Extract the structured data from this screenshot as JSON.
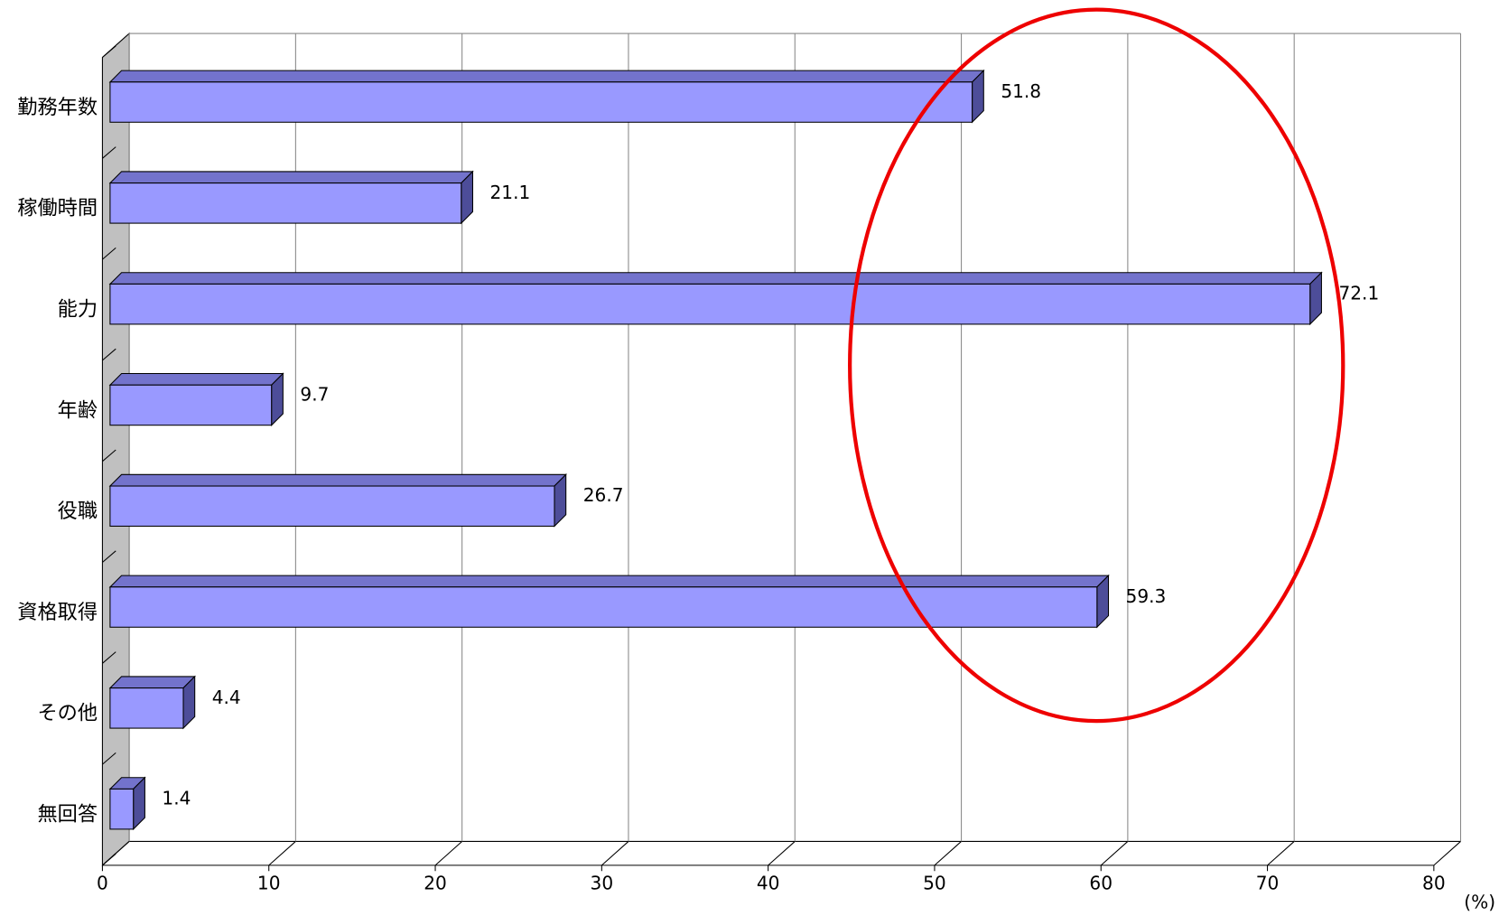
{
  "chart_data": {
    "type": "bar",
    "orientation": "horizontal",
    "categories": [
      "勤務年数",
      "稼働時間",
      "能力",
      "年齢",
      "役職",
      "資格取得",
      "その他",
      "無回答"
    ],
    "values": [
      51.8,
      21.1,
      72.1,
      9.7,
      26.7,
      59.3,
      4.4,
      1.4
    ],
    "color": "#9999ff",
    "xlim": [
      0,
      80
    ],
    "xticks": [
      0,
      10,
      20,
      30,
      40,
      50,
      60,
      70,
      80
    ],
    "x_unit_label": "(%)",
    "grid": true
  }
}
